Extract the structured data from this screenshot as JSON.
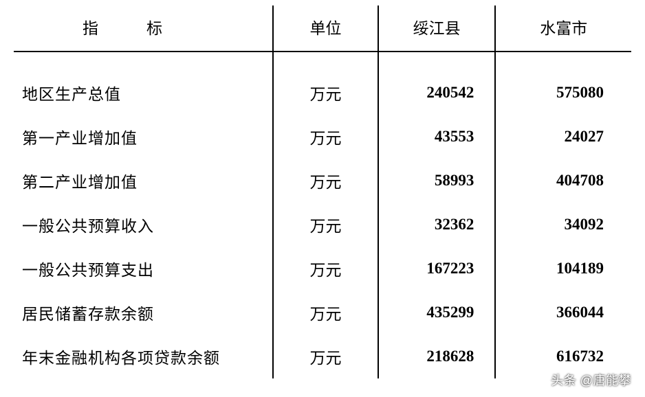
{
  "table": {
    "columns": {
      "indicator": "指　　标",
      "unit": "单位",
      "region1": "绥江县",
      "region2": "水富市"
    },
    "rows": [
      {
        "indicator": "地区生产总值",
        "unit": "万元",
        "val1": "240542",
        "val2": "575080"
      },
      {
        "indicator": "第一产业增加值",
        "unit": "万元",
        "val1": "43553",
        "val2": "24027"
      },
      {
        "indicator": "第二产业增加值",
        "unit": "万元",
        "val1": "58993",
        "val2": "404708"
      },
      {
        "indicator": "一般公共预算收入",
        "unit": "万元",
        "val1": "32362",
        "val2": "34092"
      },
      {
        "indicator": "一般公共预算支出",
        "unit": "万元",
        "val1": "167223",
        "val2": "104189"
      },
      {
        "indicator": "居民储蓄存款余额",
        "unit": "万元",
        "val1": "435299",
        "val2": "366044"
      },
      {
        "indicator": "年末金融机构各项贷款余额",
        "unit": "万元",
        "val1": "218628",
        "val2": "616732"
      }
    ],
    "header_fontsize": 23,
    "body_fontsize": 23,
    "border_color": "#000000",
    "background_color": "#ffffff",
    "text_color": "#000000"
  },
  "watermark": "头条 @唐能攀"
}
